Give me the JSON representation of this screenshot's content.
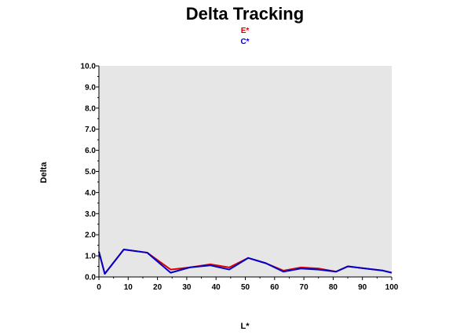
{
  "chart_data": {
    "type": "line",
    "title": "Delta Tracking",
    "xlabel": "L*",
    "ylabel": "Delta",
    "xlim": [
      0,
      100
    ],
    "ylim": [
      0,
      10
    ],
    "x_ticks": [
      "0",
      "10",
      "20",
      "30",
      "40",
      "50",
      "60",
      "70",
      "80",
      "90",
      "100"
    ],
    "y_ticks": [
      "0.0",
      "1.0",
      "2.0",
      "3.0",
      "4.0",
      "5.0",
      "6.0",
      "7.0",
      "8.0",
      "9.0",
      "10.0"
    ],
    "grid": false,
    "legend_position": "top-center",
    "plot_background": "#e6e6e6",
    "series": [
      {
        "name": "E*",
        "color": "#dd0000",
        "x": [
          0,
          2,
          8.5,
          16.5,
          24.5,
          31,
          38,
          44.5,
          51,
          57,
          63,
          69,
          75,
          81,
          85,
          91,
          97,
          100
        ],
        "y": [
          1.2,
          0.15,
          1.3,
          1.15,
          0.35,
          0.45,
          0.6,
          0.45,
          0.9,
          0.65,
          0.3,
          0.45,
          0.4,
          0.25,
          0.5,
          0.4,
          0.3,
          0.2
        ]
      },
      {
        "name": "C*",
        "color": "#0000cc",
        "x": [
          0,
          2,
          8.5,
          16.5,
          24.5,
          31,
          38,
          44.5,
          51,
          57,
          63,
          69,
          75,
          81,
          85,
          91,
          97,
          100
        ],
        "y": [
          1.2,
          0.15,
          1.3,
          1.15,
          0.2,
          0.45,
          0.55,
          0.35,
          0.9,
          0.65,
          0.25,
          0.4,
          0.35,
          0.25,
          0.5,
          0.4,
          0.3,
          0.2
        ]
      }
    ]
  }
}
